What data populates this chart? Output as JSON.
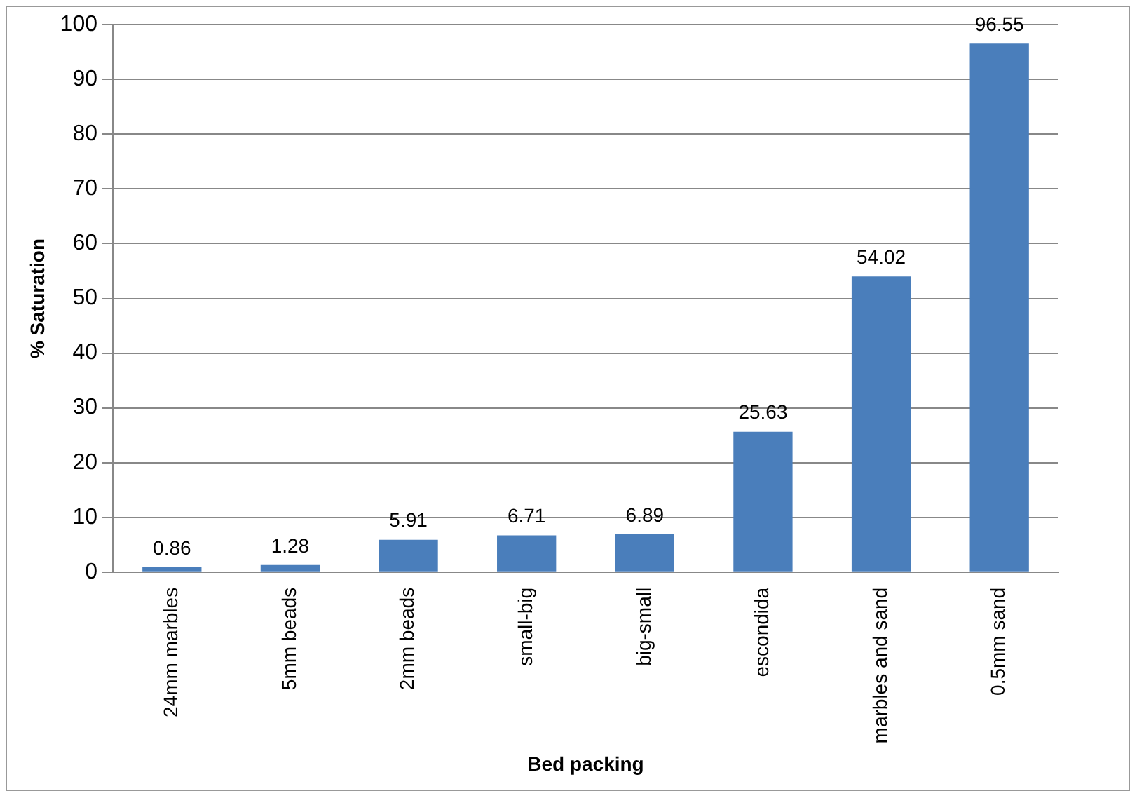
{
  "chart_data": {
    "type": "bar",
    "xlabel": "Bed packing",
    "ylabel": "% Saturation",
    "categories": [
      "24mm marbles",
      "5mm beads",
      "2mm beads",
      "small-big",
      "big-small",
      "escondida",
      "marbles and sand",
      "0.5mm sand"
    ],
    "values": [
      0.86,
      1.28,
      5.91,
      6.71,
      6.89,
      25.63,
      54.02,
      96.55
    ],
    "color": "#4a7ebb",
    "ylim": [
      0,
      100
    ],
    "yticks": [
      0,
      10,
      20,
      30,
      40,
      50,
      60,
      70,
      80,
      90,
      100
    ],
    "grid": "y",
    "data_labels": true,
    "legend": false
  }
}
